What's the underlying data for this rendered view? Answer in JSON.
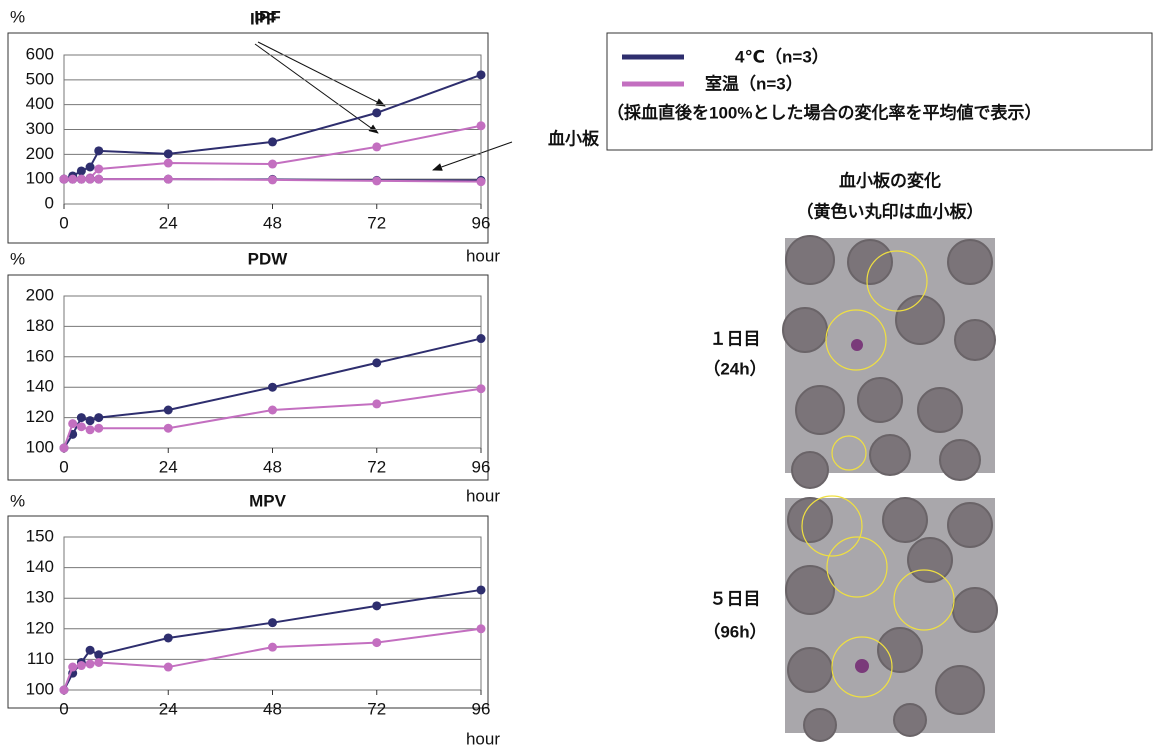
{
  "chart_data": [
    {
      "type": "line",
      "title": "IPF",
      "y_label": "%",
      "x_label": "hour",
      "x": [
        0,
        2,
        4,
        6,
        8,
        24,
        48,
        72,
        96
      ],
      "series": [
        {
          "name": "4℃（n=3）",
          "color": "#2e2e6e",
          "values": [
            100,
            113,
            133,
            149,
            214,
            202,
            250,
            367,
            520
          ]
        },
        {
          "name": "室温（n=3）",
          "color": "#c36fc0",
          "values": [
            100,
            100,
            100,
            105,
            141,
            165,
            161,
            230,
            315
          ]
        },
        {
          "color": "#2e2e6e",
          "values": [
            100,
            100,
            100,
            100,
            100,
            100,
            99,
            95,
            95
          ]
        },
        {
          "color": "#c36fc0",
          "values": [
            100,
            100,
            100,
            100,
            100,
            100,
            97,
            93,
            90
          ]
        }
      ],
      "annotations": [
        "IPF",
        "血小板"
      ],
      "xlim": [
        0,
        96
      ],
      "ylim": [
        0,
        600
      ],
      "xticks": [
        0,
        24,
        48,
        72,
        96
      ],
      "yticks": [
        0,
        100,
        200,
        300,
        400,
        500,
        600
      ],
      "grid": true
    },
    {
      "type": "line",
      "title": "PDW",
      "y_label": "%",
      "x_label": "hour",
      "x": [
        0,
        2,
        4,
        6,
        8,
        24,
        48,
        72,
        96
      ],
      "series": [
        {
          "color": "#2e2e6e",
          "values": [
            100,
            109,
            120,
            118,
            120,
            125,
            140,
            156,
            172
          ]
        },
        {
          "color": "#c36fc0",
          "values": [
            100,
            116,
            114,
            112,
            113,
            113,
            125,
            129,
            139
          ]
        }
      ],
      "xlim": [
        0,
        96
      ],
      "ylim": [
        100,
        200
      ],
      "xticks": [
        0,
        24,
        48,
        72,
        96
      ],
      "yticks": [
        100,
        120,
        140,
        160,
        180,
        200
      ],
      "grid": true
    },
    {
      "type": "line",
      "title": "MPV",
      "y_label": "%",
      "x_label": "hour",
      "x": [
        0,
        2,
        4,
        6,
        8,
        24,
        48,
        72,
        96
      ],
      "series": [
        {
          "color": "#2e2e6e",
          "values": [
            100,
            105.5,
            109,
            113,
            111.5,
            117,
            122,
            127.5,
            132.7
          ]
        },
        {
          "color": "#c36fc0",
          "values": [
            100,
            107.5,
            108,
            108.5,
            109,
            107.5,
            114,
            115.5,
            120
          ]
        }
      ],
      "xlim": [
        0,
        96
      ],
      "ylim": [
        100,
        150
      ],
      "xticks": [
        0,
        24,
        48,
        72,
        96
      ],
      "yticks": [
        100,
        110,
        120,
        130,
        140,
        150
      ],
      "grid": true
    }
  ],
  "legend_note": "（採血直後を100%とした場合の変化率を平均値で表示）",
  "micrograph": {
    "title": "血小板の変化",
    "subtitle": "（黄色い丸印は血小板）",
    "panels": [
      {
        "day": "１日目",
        "hours": "（24h）"
      },
      {
        "day": "５日目",
        "hours": "（96h）"
      }
    ]
  }
}
